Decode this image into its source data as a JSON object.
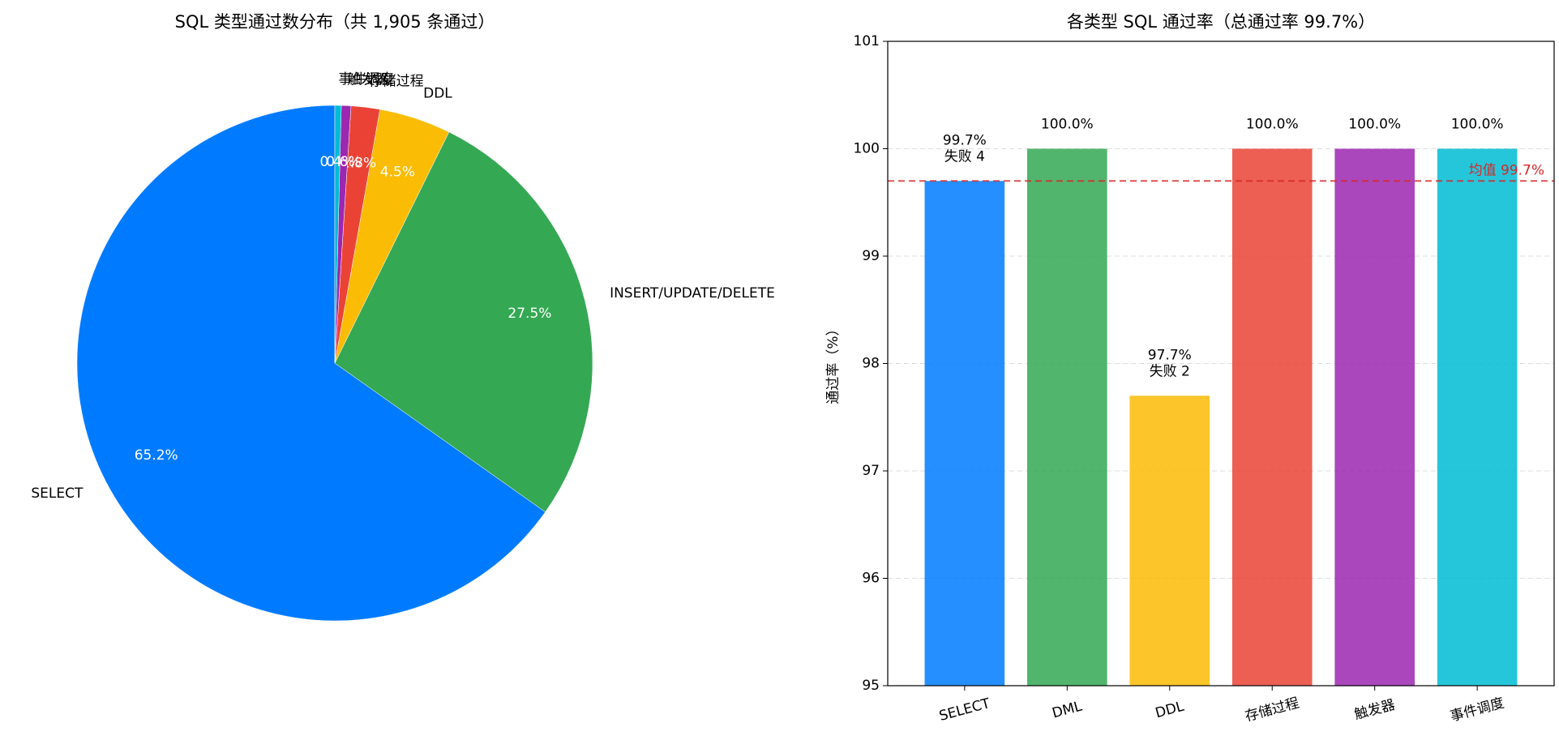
{
  "chart_data": [
    {
      "type": "pie",
      "title": "SQL 类型通过数分布（共 1,905 条通过）",
      "categories": [
        "SELECT",
        "INSERT/UPDATE/DELETE",
        "DDL",
        "存储过程",
        "触发器",
        "事件调度"
      ],
      "values": [
        65.2,
        27.5,
        4.5,
        1.8,
        0.6,
        0.4
      ],
      "value_labels": [
        "65.2%",
        "27.5%",
        "4.5%",
        "1.8%",
        "0.6%",
        "0.4%"
      ],
      "colors": [
        "#007bff",
        "#34a853",
        "#fbbc05",
        "#ea4335",
        "#9c27b0",
        "#00bcd4"
      ]
    },
    {
      "type": "bar",
      "title": "各类型 SQL 通过率（总通过率 99.7%）",
      "ylabel": "通过率（%）",
      "categories": [
        "SELECT",
        "DML",
        "DDL",
        "存储过程",
        "触发器",
        "事件调度"
      ],
      "values": [
        99.7,
        100,
        97.7,
        100,
        100,
        100
      ],
      "value_labels": [
        "99.7%",
        "100.0%",
        "97.7%",
        "100.0%",
        "100.0%",
        "100.0%"
      ],
      "fail_labels": [
        "失败 4",
        null,
        "失败 2",
        null,
        null,
        null
      ],
      "colors": [
        "#007bff",
        "#34a853",
        "#fbbc05",
        "#ea4335",
        "#9c27b0",
        "#00bcd4"
      ],
      "mean_line": {
        "value": 99.7,
        "label": "均值 99.7%",
        "color": "#d62728"
      },
      "ylim": [
        95,
        101
      ],
      "yticks": [
        95,
        96,
        97,
        98,
        99,
        100,
        101
      ],
      "grid": true
    }
  ]
}
